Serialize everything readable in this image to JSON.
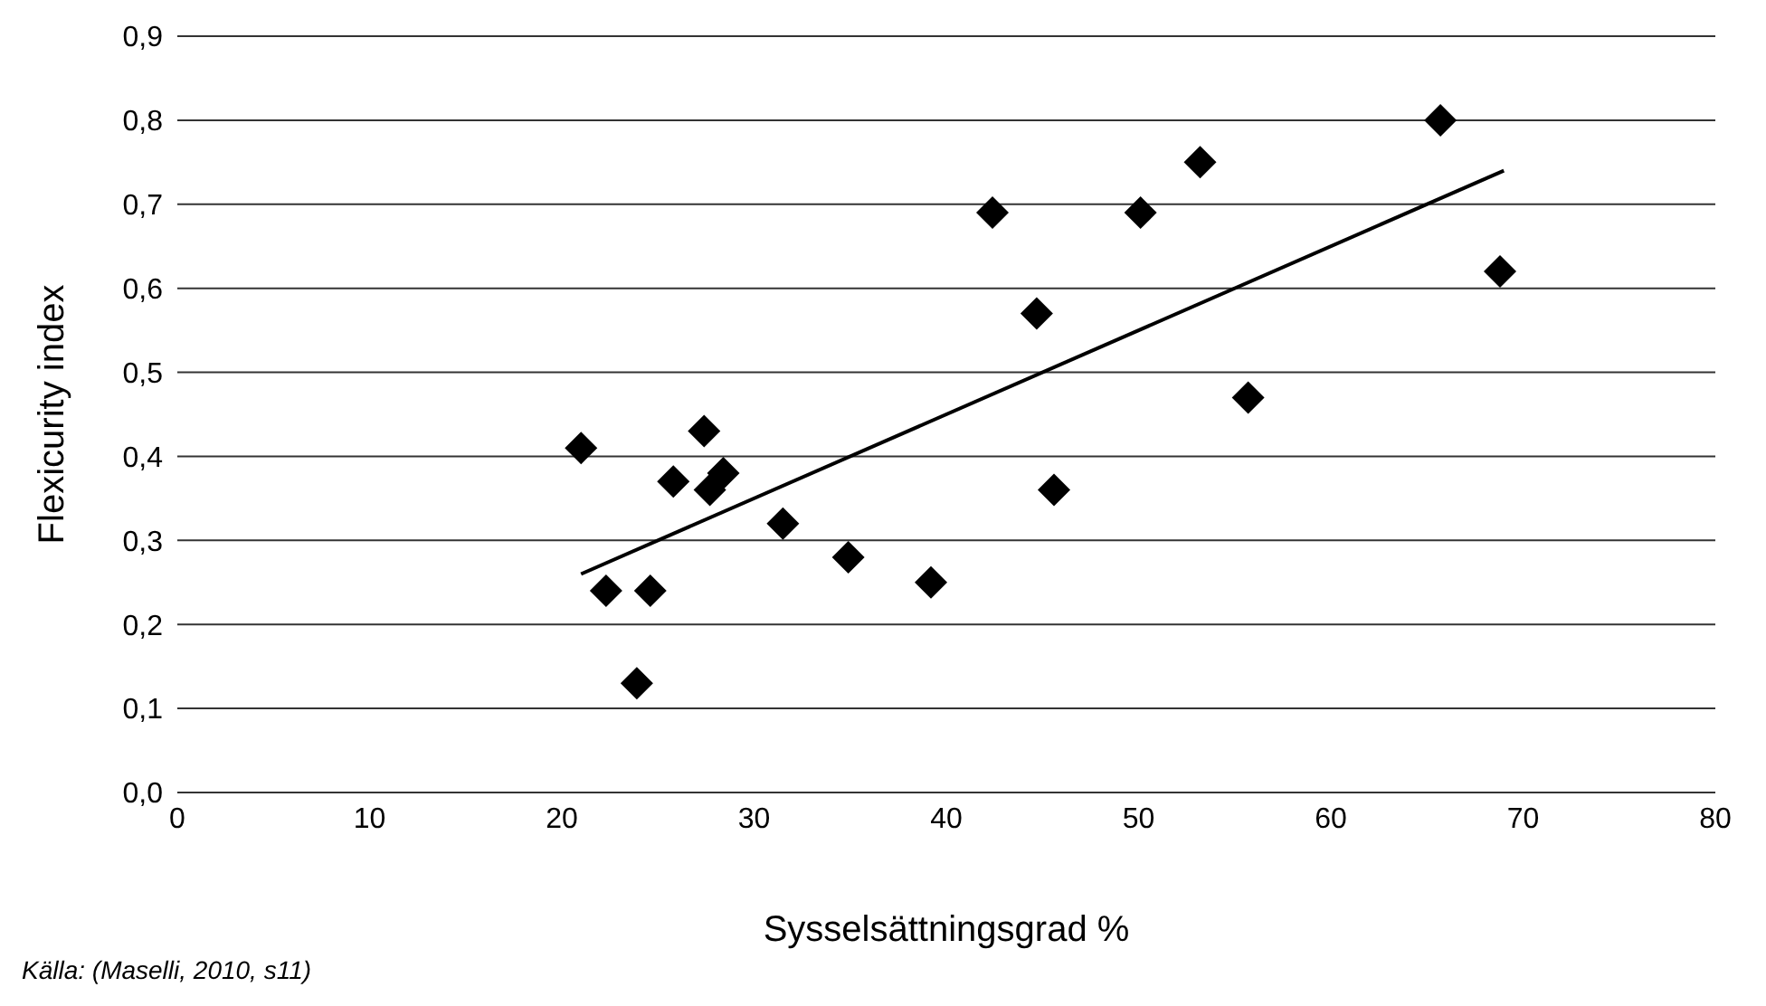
{
  "chart_data": {
    "type": "scatter",
    "xlabel": "Sysselsättningsgrad %",
    "ylabel": "Flexicurity index",
    "annotations": [
      "Källa: (Maselli, 2010, s11)"
    ],
    "series": [
      {
        "color": "#000000",
        "marker": "diamond",
        "x": [
          21,
          22.3,
          24.6,
          23.9,
          25.8,
          27.4,
          27.7,
          28.4,
          31.5,
          34.9,
          39.2,
          42.4,
          44.7,
          45.6,
          50.1,
          53.2,
          55.7,
          65.7,
          68.8
        ],
        "values": [
          0.41,
          0.24,
          0.24,
          0.13,
          0.37,
          0.43,
          0.36,
          0.38,
          0.32,
          0.28,
          0.25,
          0.69,
          0.57,
          0.36,
          0.69,
          0.75,
          0.47,
          0.8,
          0.62
        ]
      },
      {
        "type": "line",
        "color": "#000000",
        "marker": "none",
        "x": [
          21,
          69
        ],
        "values": [
          0.26,
          0.74
        ]
      }
    ],
    "xlim": [
      0,
      80
    ],
    "xticks": [
      0,
      10,
      20,
      30,
      40,
      50,
      60,
      70,
      80
    ],
    "ylim": [
      0,
      0.9
    ],
    "yticks": [
      {
        "value": 0,
        "label": "0,0"
      },
      {
        "value": 0.1,
        "label": "0,1"
      },
      {
        "value": 0.2,
        "label": "0,2"
      },
      {
        "value": 0.3,
        "label": "0,3"
      },
      {
        "value": 0.4,
        "label": "0,4"
      },
      {
        "value": 0.5,
        "label": "0,5"
      },
      {
        "value": 0.6,
        "label": "0,6"
      },
      {
        "value": 0.7,
        "label": "0,7"
      },
      {
        "value": 0.8,
        "label": "0,8"
      },
      {
        "value": 0.9,
        "label": "0,9"
      }
    ],
    "grid": "y",
    "legend": false
  }
}
